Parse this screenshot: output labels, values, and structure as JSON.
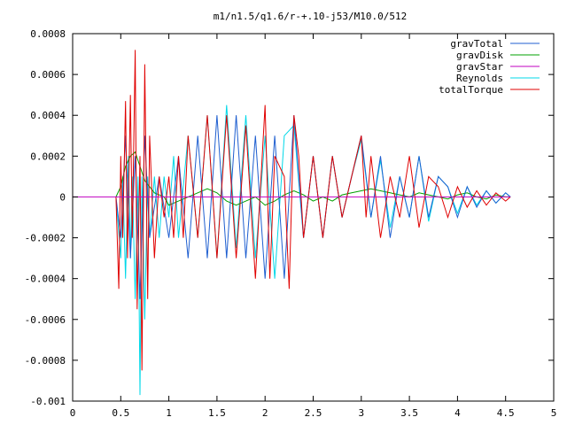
{
  "chart_data": {
    "type": "line",
    "title": "m1/n1.5/q1.6/r-+.10-j53/M10.0/512",
    "xlabel": "",
    "ylabel": "",
    "xlim": [
      0,
      5
    ],
    "ylim": [
      -0.001,
      0.0008
    ],
    "x_ticks": [
      0,
      0.5,
      1,
      1.5,
      2,
      2.5,
      3,
      3.5,
      4,
      4.5,
      5
    ],
    "x_tick_labels": [
      "0",
      "0.5",
      "1",
      "1.5",
      "2",
      "2.5",
      "3",
      "3.5",
      "4",
      "4.5",
      "5"
    ],
    "y_ticks": [
      0.0008,
      0.0006,
      0.0004,
      0.0002,
      0,
      -0.0002,
      -0.0004,
      -0.0006,
      -0.0008,
      -0.001
    ],
    "y_tick_labels": [
      "0.0008",
      "0.0006",
      "0.0004",
      "0.0002",
      "0",
      "-0.0002",
      "-0.0004",
      "-0.0006",
      "-0.0008",
      "-0.001"
    ],
    "grid": false,
    "legend_position": "top-right",
    "series": [
      {
        "name": "gravTotal",
        "color": "#1f5fd0",
        "x": [
          0.45,
          0.5,
          0.55,
          0.6,
          0.65,
          0.7,
          0.75,
          0.8,
          0.9,
          1.0,
          1.1,
          1.2,
          1.3,
          1.4,
          1.5,
          1.6,
          1.7,
          1.8,
          1.9,
          2.0,
          2.1,
          2.2,
          2.3,
          2.4,
          2.5,
          2.6,
          2.7,
          2.8,
          2.9,
          3.0,
          3.1,
          3.2,
          3.3,
          3.4,
          3.5,
          3.6,
          3.7,
          3.8,
          3.9,
          4.0,
          4.1,
          4.2,
          4.3,
          4.4,
          4.5,
          4.55
        ],
        "y": [
          0,
          -0.0002,
          0.0003,
          -0.0003,
          0.0002,
          -0.0005,
          0.0003,
          -0.0002,
          0.0001,
          -0.0002,
          0.0002,
          -0.0003,
          0.0003,
          -0.0003,
          0.0004,
          -0.0003,
          0.0004,
          -0.0003,
          0.0003,
          -0.0004,
          0.0003,
          -0.0004,
          0.0004,
          -0.0002,
          0.0002,
          -0.0002,
          0.0002,
          -0.0001,
          0.0001,
          0.0003,
          -0.0001,
          0.0002,
          -0.0002,
          0.0001,
          -0.0001,
          0.0002,
          -0.0001,
          0.0001,
          5e-05,
          -0.0001,
          5e-05,
          -5e-05,
          3e-05,
          -3e-05,
          2e-05,
          0
        ]
      },
      {
        "name": "gravDisk",
        "color": "#00a000",
        "x": [
          0.45,
          0.5,
          0.55,
          0.6,
          0.65,
          0.7,
          0.75,
          0.8,
          0.85,
          0.9,
          0.95,
          1.0,
          1.1,
          1.2,
          1.3,
          1.4,
          1.5,
          1.6,
          1.7,
          1.8,
          1.9,
          2.0,
          2.1,
          2.2,
          2.3,
          2.4,
          2.5,
          2.6,
          2.7,
          2.8,
          2.9,
          3.0,
          3.1,
          3.2,
          3.3,
          3.4,
          3.5,
          3.6,
          3.7,
          3.8,
          3.9,
          4.0,
          4.1,
          4.2,
          4.3,
          4.4,
          4.5,
          4.55
        ],
        "y": [
          0,
          5e-05,
          0.00015,
          0.0002,
          0.00022,
          0.00015,
          8e-05,
          5e-05,
          2e-05,
          1e-05,
          0,
          -4e-05,
          -2e-05,
          0,
          2e-05,
          4e-05,
          2e-05,
          -2e-05,
          -4e-05,
          -2e-05,
          0,
          -4e-05,
          -2e-05,
          1e-05,
          3e-05,
          1e-05,
          -2e-05,
          0,
          -2e-05,
          1e-05,
          2e-05,
          3e-05,
          4e-05,
          3e-05,
          2e-05,
          1e-05,
          0,
          2e-05,
          1e-05,
          0,
          -1e-05,
          1e-05,
          2e-05,
          0,
          -1e-05,
          1e-05,
          0,
          0
        ]
      },
      {
        "name": "gravStar",
        "color": "#c000c0",
        "x": [
          0,
          4.55
        ],
        "y": [
          0,
          0
        ]
      },
      {
        "name": "Reynolds",
        "color": "#00d8e8",
        "x": [
          0.45,
          0.5,
          0.52,
          0.55,
          0.58,
          0.6,
          0.62,
          0.65,
          0.68,
          0.7,
          0.72,
          0.75,
          0.78,
          0.8,
          0.85,
          0.9,
          0.95,
          1.0,
          1.05,
          1.1,
          1.2,
          1.3,
          1.4,
          1.5,
          1.6,
          1.7,
          1.8,
          1.9,
          2.0,
          2.1,
          2.2,
          2.3,
          2.4,
          2.5,
          2.6,
          2.7,
          2.8,
          2.9,
          3.0,
          3.1,
          3.2,
          3.3,
          3.4,
          3.5,
          3.6,
          3.7,
          3.8,
          3.9,
          4.0,
          4.1,
          4.2,
          4.3,
          4.4,
          4.5,
          4.55
        ],
        "y": [
          0,
          -0.0003,
          0.0001,
          -0.0004,
          0.0002,
          -0.0003,
          0.0001,
          -0.0005,
          0.0001,
          -0.00097,
          0.0001,
          -0.0006,
          0.0001,
          -0.0002,
          0.0001,
          -0.0002,
          0.0001,
          -0.0001,
          0.0002,
          -0.0002,
          0.0003,
          -0.0002,
          0.0004,
          -0.0003,
          0.00045,
          -0.00025,
          0.0004,
          -0.0003,
          0.0003,
          -0.0004,
          0.0003,
          0.00035,
          -0.0002,
          0.0002,
          -0.0002,
          0.0002,
          -0.0001,
          0.0001,
          0.00028,
          -0.0001,
          0.00018,
          -0.00015,
          0.0001,
          -0.0001,
          0.0002,
          -0.00012,
          0.0001,
          5e-05,
          -8e-05,
          5e-05,
          -4e-05,
          3e-05,
          -3e-05,
          2e-05,
          0
        ]
      },
      {
        "name": "totalTorque",
        "color": "#e00000",
        "x": [
          0.45,
          0.48,
          0.5,
          0.52,
          0.55,
          0.57,
          0.6,
          0.62,
          0.65,
          0.67,
          0.7,
          0.72,
          0.75,
          0.78,
          0.8,
          0.85,
          0.9,
          0.95,
          1.0,
          1.05,
          1.1,
          1.15,
          1.2,
          1.3,
          1.4,
          1.5,
          1.6,
          1.7,
          1.8,
          1.9,
          2.0,
          2.05,
          2.1,
          2.2,
          2.25,
          2.3,
          2.35,
          2.4,
          2.5,
          2.6,
          2.7,
          2.8,
          2.9,
          3.0,
          3.05,
          3.1,
          3.2,
          3.3,
          3.4,
          3.5,
          3.6,
          3.7,
          3.8,
          3.9,
          4.0,
          4.1,
          4.2,
          4.3,
          4.4,
          4.5,
          4.55
        ],
        "y": [
          0,
          -0.00045,
          0.0002,
          -0.0002,
          0.00047,
          -0.0003,
          0.0005,
          -0.0002,
          0.00072,
          -0.00055,
          0.0002,
          -0.00085,
          0.00065,
          -0.0005,
          0.0003,
          -0.0003,
          0.0001,
          -0.0001,
          0.0001,
          -0.0002,
          0.0002,
          -0.0002,
          0.0003,
          -0.0002,
          0.0004,
          -0.0003,
          0.0004,
          -0.0003,
          0.00035,
          -0.0004,
          0.00045,
          -0.0004,
          0.0002,
          0.0001,
          -0.00045,
          0.0004,
          0.0002,
          -0.0002,
          0.0002,
          -0.0002,
          0.0002,
          -0.0001,
          0.0001,
          0.0003,
          -0.0001,
          0.0002,
          -0.0002,
          0.0001,
          -0.0001,
          0.0002,
          -0.00015,
          0.0001,
          5e-05,
          -0.0001,
          5e-05,
          -5e-05,
          3e-05,
          -4e-05,
          2e-05,
          -2e-05,
          0
        ]
      }
    ]
  }
}
